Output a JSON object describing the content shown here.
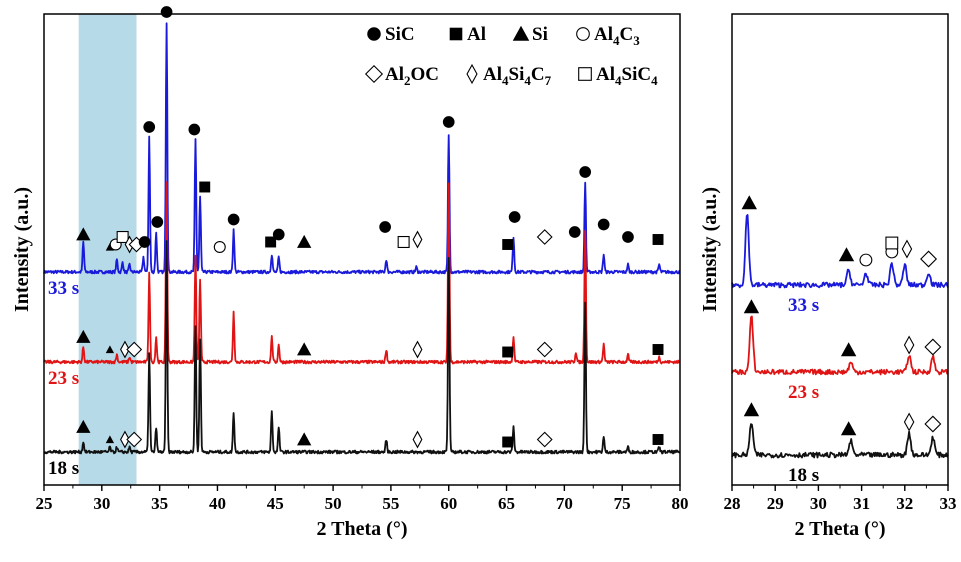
{
  "chart_data": [
    {
      "type": "line",
      "xlabel": "2 Theta (°)",
      "ylabel": "Intensity (a.u.)",
      "xlim": [
        25,
        80
      ],
      "xticks": [
        25,
        30,
        35,
        40,
        45,
        50,
        55,
        60,
        65,
        70,
        75,
        80
      ],
      "highlight_band": {
        "x": [
          28,
          33
        ],
        "color": "#a9d3e3"
      },
      "legend": [
        {
          "marker": "filled-circle",
          "label": "SiC"
        },
        {
          "marker": "filled-square",
          "label": "Al"
        },
        {
          "marker": "filled-triangle",
          "label": "Si"
        },
        {
          "marker": "open-circle",
          "label": "Al",
          "sub": "4",
          "label2": "C",
          "sub2": "3"
        },
        {
          "marker": "open-diamond",
          "label": "Al",
          "sub": "2",
          "label2": "OC"
        },
        {
          "marker": "open-narrow-diamond",
          "label": "Al",
          "sub": "4",
          "label2": "Si",
          "sub2": "4",
          "label3": "C",
          "sub3": "7"
        },
        {
          "marker": "open-square",
          "label": "Al",
          "sub": "4",
          "label2": "SiC",
          "sub2": "4"
        }
      ],
      "series": [
        {
          "name": "33 s",
          "color": "#1a1adb",
          "peaks": [
            [
              28.4,
              0.12
            ],
            [
              31.3,
              0.05
            ],
            [
              31.8,
              0.04
            ],
            [
              32.4,
              0.03
            ],
            [
              33.6,
              0.06
            ],
            [
              34.1,
              0.54
            ],
            [
              34.7,
              0.16
            ],
            [
              35.6,
              1.0
            ],
            [
              38.1,
              0.53
            ],
            [
              38.5,
              0.3
            ],
            [
              41.4,
              0.17
            ],
            [
              44.7,
              0.07
            ],
            [
              45.3,
              0.06
            ],
            [
              54.6,
              0.05
            ],
            [
              57.2,
              0.02
            ],
            [
              60.0,
              0.55
            ],
            [
              65.6,
              0.14
            ],
            [
              71.8,
              0.36
            ],
            [
              73.4,
              0.07
            ],
            [
              75.5,
              0.03
            ],
            [
              78.2,
              0.03
            ]
          ],
          "markers": [
            {
              "type": "filled-triangle",
              "x": 28.4,
              "y": 0.15
            },
            {
              "type": "filled-triangle-small",
              "x": 30.7,
              "y": 0.1
            },
            {
              "type": "open-circle",
              "x": 31.2,
              "y": 0.11
            },
            {
              "type": "open-square",
              "x": 31.8,
              "y": 0.14
            },
            {
              "type": "open-narrow-diamond",
              "x": 32.4,
              "y": 0.11
            },
            {
              "type": "open-diamond",
              "x": 33.0,
              "y": 0.11
            },
            {
              "type": "filled-circle",
              "x": 33.7,
              "y": 0.12
            },
            {
              "type": "filled-circle",
              "x": 34.1,
              "y": 0.58
            },
            {
              "type": "filled-circle",
              "x": 34.8,
              "y": 0.2
            },
            {
              "type": "filled-circle",
              "x": 35.6,
              "y": 1.04
            },
            {
              "type": "filled-circle",
              "x": 38.0,
              "y": 0.57
            },
            {
              "type": "filled-square",
              "x": 38.9,
              "y": 0.34
            },
            {
              "type": "open-circle",
              "x": 40.2,
              "y": 0.1
            },
            {
              "type": "filled-circle",
              "x": 41.4,
              "y": 0.21
            },
            {
              "type": "filled-square",
              "x": 44.6,
              "y": 0.12
            },
            {
              "type": "filled-circle",
              "x": 45.3,
              "y": 0.15
            },
            {
              "type": "filled-triangle",
              "x": 47.5,
              "y": 0.12
            },
            {
              "type": "filled-circle",
              "x": 54.5,
              "y": 0.18
            },
            {
              "type": "open-square",
              "x": 56.1,
              "y": 0.12
            },
            {
              "type": "open-narrow-diamond",
              "x": 57.3,
              "y": 0.13
            },
            {
              "type": "filled-circle",
              "x": 60.0,
              "y": 0.6
            },
            {
              "type": "filled-square",
              "x": 65.1,
              "y": 0.11
            },
            {
              "type": "filled-circle",
              "x": 65.7,
              "y": 0.22
            },
            {
              "type": "open-diamond",
              "x": 68.3,
              "y": 0.14
            },
            {
              "type": "filled-circle",
              "x": 70.9,
              "y": 0.16
            },
            {
              "type": "filled-circle",
              "x": 71.8,
              "y": 0.4
            },
            {
              "type": "filled-circle",
              "x": 73.4,
              "y": 0.19
            },
            {
              "type": "filled-circle",
              "x": 75.5,
              "y": 0.14
            },
            {
              "type": "filled-square",
              "x": 78.1,
              "y": 0.13
            }
          ]
        },
        {
          "name": "23 s",
          "color": "#e01414",
          "peaks": [
            [
              28.4,
              0.06
            ],
            [
              31.3,
              0.03
            ],
            [
              32.4,
              0.02
            ],
            [
              34.1,
              0.36
            ],
            [
              34.7,
              0.1
            ],
            [
              35.6,
              0.72
            ],
            [
              38.1,
              0.42
            ],
            [
              38.5,
              0.33
            ],
            [
              41.4,
              0.2
            ],
            [
              44.7,
              0.1
            ],
            [
              45.3,
              0.07
            ],
            [
              54.6,
              0.05
            ],
            [
              60.0,
              0.72
            ],
            [
              65.6,
              0.1
            ],
            [
              71.0,
              0.04
            ],
            [
              71.8,
              0.53
            ],
            [
              73.4,
              0.07
            ],
            [
              75.5,
              0.03
            ],
            [
              78.2,
              0.02
            ]
          ],
          "markers": [
            {
              "type": "filled-triangle",
              "x": 28.4,
              "y": 0.1
            },
            {
              "type": "filled-triangle-small",
              "x": 30.7,
              "y": 0.05
            },
            {
              "type": "open-narrow-diamond",
              "x": 32.0,
              "y": 0.05
            },
            {
              "type": "open-diamond",
              "x": 32.8,
              "y": 0.05
            },
            {
              "type": "filled-triangle",
              "x": 47.5,
              "y": 0.05
            },
            {
              "type": "open-narrow-diamond",
              "x": 57.3,
              "y": 0.05
            },
            {
              "type": "filled-square",
              "x": 65.1,
              "y": 0.04
            },
            {
              "type": "open-diamond",
              "x": 68.3,
              "y": 0.05
            },
            {
              "type": "filled-square",
              "x": 78.1,
              "y": 0.05
            }
          ]
        },
        {
          "name": "18 s",
          "color": "#111111",
          "peaks": [
            [
              28.4,
              0.04
            ],
            [
              30.7,
              0.02
            ],
            [
              31.3,
              0.02
            ],
            [
              32.4,
              0.02
            ],
            [
              34.1,
              0.4
            ],
            [
              34.7,
              0.1
            ],
            [
              35.6,
              0.84
            ],
            [
              38.1,
              0.5
            ],
            [
              38.5,
              0.45
            ],
            [
              41.4,
              0.16
            ],
            [
              44.7,
              0.16
            ],
            [
              45.3,
              0.1
            ],
            [
              54.6,
              0.05
            ],
            [
              60.0,
              0.78
            ],
            [
              65.6,
              0.1
            ],
            [
              71.8,
              0.6
            ],
            [
              73.4,
              0.06
            ],
            [
              75.5,
              0.02
            ],
            [
              78.2,
              0.02
            ]
          ],
          "markers": [
            {
              "type": "filled-triangle",
              "x": 28.4,
              "y": 0.1
            },
            {
              "type": "filled-triangle-small",
              "x": 30.7,
              "y": 0.05
            },
            {
              "type": "open-narrow-diamond",
              "x": 32.0,
              "y": 0.05
            },
            {
              "type": "open-diamond",
              "x": 32.8,
              "y": 0.05
            },
            {
              "type": "filled-triangle",
              "x": 47.5,
              "y": 0.05
            },
            {
              "type": "open-narrow-diamond",
              "x": 57.3,
              "y": 0.05
            },
            {
              "type": "filled-square",
              "x": 65.1,
              "y": 0.04
            },
            {
              "type": "open-diamond",
              "x": 68.3,
              "y": 0.05
            },
            {
              "type": "filled-square",
              "x": 78.1,
              "y": 0.05
            }
          ]
        }
      ]
    },
    {
      "type": "line",
      "xlabel": "2 Theta (°)",
      "ylabel": "Intensity (a.u.)",
      "xlim": [
        28,
        33
      ],
      "xticks": [
        28,
        29,
        30,
        31,
        32,
        33
      ],
      "series": [
        {
          "name": "33 s",
          "color": "#1a1adb",
          "peaks": [
            [
              28.35,
              0.72
            ],
            [
              30.7,
              0.15
            ],
            [
              31.1,
              0.12
            ],
            [
              31.7,
              0.22
            ],
            [
              32.0,
              0.2
            ],
            [
              32.55,
              0.13
            ]
          ],
          "markers": [
            {
              "type": "filled-triangle",
              "x": 28.4,
              "y": 0.82
            },
            {
              "type": "filled-triangle",
              "x": 30.65,
              "y": 0.3
            },
            {
              "type": "open-circle",
              "x": 31.1,
              "y": 0.25
            },
            {
              "type": "open-circle",
              "x": 31.7,
              "y": 0.33
            },
            {
              "type": "open-square",
              "x": 31.7,
              "y": 0.42
            },
            {
              "type": "open-narrow-diamond",
              "x": 32.05,
              "y": 0.36
            },
            {
              "type": "open-diamond",
              "x": 32.55,
              "y": 0.26
            }
          ]
        },
        {
          "name": "23 s",
          "color": "#e01414",
          "peaks": [
            [
              28.45,
              0.55
            ],
            [
              30.75,
              0.1
            ],
            [
              32.1,
              0.17
            ],
            [
              32.65,
              0.15
            ]
          ],
          "markers": [
            {
              "type": "filled-triangle",
              "x": 28.45,
              "y": 0.65
            },
            {
              "type": "filled-triangle",
              "x": 30.7,
              "y": 0.22
            },
            {
              "type": "open-narrow-diamond",
              "x": 32.1,
              "y": 0.27
            },
            {
              "type": "open-diamond",
              "x": 32.65,
              "y": 0.25
            }
          ]
        },
        {
          "name": "18 s",
          "color": "#111111",
          "peaks": [
            [
              28.45,
              0.33
            ],
            [
              30.75,
              0.14
            ],
            [
              32.1,
              0.22
            ],
            [
              32.65,
              0.18
            ]
          ],
          "markers": [
            {
              "type": "filled-triangle",
              "x": 28.45,
              "y": 0.45
            },
            {
              "type": "filled-triangle",
              "x": 30.7,
              "y": 0.26
            },
            {
              "type": "open-narrow-diamond",
              "x": 32.1,
              "y": 0.33
            },
            {
              "type": "open-diamond",
              "x": 32.65,
              "y": 0.31
            }
          ]
        }
      ]
    }
  ]
}
